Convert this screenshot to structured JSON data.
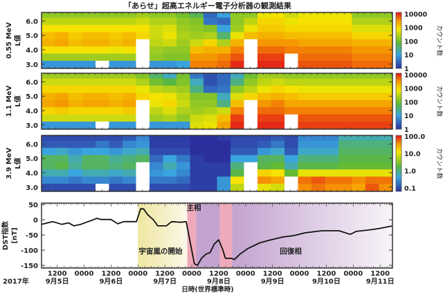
{
  "title": "「あらせ」超高エネルギー電子分析器の観測結果",
  "xaxis": {
    "label": "日時(世界標準時)",
    "year_label": "2017年",
    "range": [
      "09-05 05:00",
      "09-11 17:30"
    ],
    "time_ticks": [
      {
        "t": "09-05 12:00",
        "label": "1200"
      },
      {
        "t": "09-06 00:00",
        "label": "0000"
      },
      {
        "t": "09-06 12:00",
        "label": "1200"
      },
      {
        "t": "09-07 00:00",
        "label": "0000"
      },
      {
        "t": "09-07 12:00",
        "label": "1200"
      },
      {
        "t": "09-08 00:00",
        "label": "0000"
      },
      {
        "t": "09-08 12:00",
        "label": "1200"
      },
      {
        "t": "09-09 00:00",
        "label": "0000"
      },
      {
        "t": "09-09 12:00",
        "label": "1200"
      },
      {
        "t": "09-10 00:00",
        "label": "0000"
      },
      {
        "t": "09-10 12:00",
        "label": "1200"
      },
      {
        "t": "09-11 00:00",
        "label": "0000"
      },
      {
        "t": "09-11 12:00",
        "label": "1200"
      }
    ],
    "date_labels": [
      {
        "t": "09-05 12:00",
        "label": "9月5日"
      },
      {
        "t": "09-06 12:00",
        "label": "9月6日"
      },
      {
        "t": "09-07 12:00",
        "label": "9月7日"
      },
      {
        "t": "09-08 12:00",
        "label": "9月8日"
      },
      {
        "t": "09-09 12:00",
        "label": "9月9日"
      },
      {
        "t": "09-10 12:00",
        "label": "9月10日"
      },
      {
        "t": "09-11 12:00",
        "label": "9月11日"
      }
    ]
  },
  "chart_data": [
    {
      "type": "heatmap",
      "energy_label": "0.55 MeV",
      "ylabel": "L値",
      "ylim": [
        2.7,
        6.6
      ],
      "yticks": [
        "3.0",
        "4.0",
        "5.0",
        "6.0"
      ],
      "L_bins": [
        3.0,
        3.5,
        4.0,
        4.5,
        5.0,
        5.5,
        6.0,
        6.5
      ],
      "colorbar_label": "カウント数",
      "colorbar_range_log10": [
        0,
        4.1
      ],
      "colorbar_ticks": [
        {
          "v": 4,
          "label": "10000"
        },
        {
          "v": 3,
          "label": "1000"
        },
        {
          "v": 2,
          "label": "100"
        },
        {
          "v": 1,
          "label": "10"
        },
        {
          "v": 0,
          "label": "1"
        }
      ],
      "log10_counts_columns": [
        [
          0.9,
          2.3,
          2.9,
          3.3,
          3.2,
          2.9,
          2.5,
          2.2
        ],
        [
          0.9,
          2.3,
          2.9,
          3.4,
          3.3,
          2.9,
          2.5,
          2.2
        ],
        [
          0.9,
          2.3,
          2.9,
          3.2,
          3.1,
          2.9,
          2.5,
          2.2
        ],
        [
          0.9,
          2.3,
          2.9,
          3.3,
          3.2,
          2.9,
          2.5,
          2.2
        ],
        [
          null,
          2.3,
          2.9,
          3.3,
          3.2,
          2.9,
          2.5,
          2.2
        ],
        [
          0.9,
          2.3,
          2.8,
          3.2,
          3.1,
          2.9,
          2.5,
          2.2
        ],
        [
          0.9,
          2.3,
          2.9,
          3.3,
          3.2,
          2.9,
          2.5,
          2.2
        ],
        [
          null,
          null,
          null,
          null,
          3.0,
          2.9,
          2.6,
          2.3
        ],
        [
          0.9,
          2.2,
          2.3,
          2.5,
          2.6,
          2.6,
          2.4,
          2.2
        ],
        [
          0.9,
          2.1,
          2.2,
          2.6,
          2.8,
          2.7,
          2.4,
          2.2
        ],
        [
          1.0,
          2.1,
          2.2,
          2.3,
          2.4,
          2.3,
          2.2,
          2.0
        ],
        [
          3.6,
          3.5,
          3.2,
          2.6,
          2.3,
          2.2,
          2.1,
          1.7
        ],
        [
          3.6,
          3.5,
          3.3,
          3.0,
          2.4,
          2.1,
          0.6,
          0.5
        ],
        [
          3.7,
          3.6,
          3.3,
          2.4,
          1.6,
          1.0,
          0.5,
          1.0
        ],
        [
          4.0,
          3.8,
          3.6,
          3.3,
          2.8,
          2.3,
          2.2,
          2.2
        ],
        [
          null,
          null,
          null,
          null,
          3.2,
          2.8,
          2.5,
          2.2
        ],
        [
          4.0,
          3.9,
          3.7,
          3.5,
          3.3,
          3.1,
          3.0,
          2.8
        ],
        [
          4.0,
          3.9,
          3.7,
          3.5,
          3.3,
          3.1,
          3.0,
          2.9
        ],
        [
          null,
          null,
          3.6,
          3.5,
          3.2,
          3.0,
          2.8,
          2.6
        ],
        [
          3.8,
          3.7,
          3.6,
          3.4,
          3.2,
          3.0,
          2.9,
          2.8
        ],
        [
          3.8,
          3.7,
          3.6,
          3.4,
          3.2,
          3.0,
          2.9,
          2.8
        ],
        [
          3.8,
          3.7,
          3.6,
          3.4,
          3.2,
          3.0,
          2.9,
          2.8
        ],
        [
          3.8,
          3.7,
          3.6,
          3.4,
          3.2,
          3.0,
          2.9,
          2.8
        ],
        [
          3.7,
          3.6,
          3.5,
          3.3,
          3.0,
          2.7,
          2.4,
          2.2
        ],
        [
          3.7,
          3.6,
          3.5,
          3.3,
          3.0,
          2.7,
          2.4,
          2.2
        ],
        [
          3.7,
          3.6,
          3.5,
          3.3,
          3.0,
          2.7,
          2.4,
          2.2
        ]
      ]
    },
    {
      "type": "heatmap",
      "energy_label": "1.1 MeV",
      "ylabel": "L値",
      "ylim": [
        2.7,
        6.6
      ],
      "yticks": [
        "3.0",
        "4.0",
        "5.0",
        "6.0"
      ],
      "L_bins": [
        3.0,
        3.5,
        4.0,
        4.5,
        5.0,
        5.5,
        6.0,
        6.5
      ],
      "colorbar_label": "カウント数",
      "colorbar_range_log10": [
        0,
        4.1
      ],
      "colorbar_ticks": [
        {
          "v": 4,
          "label": "10000"
        },
        {
          "v": 3,
          "label": "1000"
        },
        {
          "v": 2,
          "label": "100"
        },
        {
          "v": 1,
          "label": "10"
        },
        {
          "v": 0,
          "label": "1"
        }
      ],
      "log10_counts_columns": [
        [
          0.9,
          2.6,
          3.0,
          3.4,
          3.3,
          3.0,
          2.6,
          2.3
        ],
        [
          0.9,
          2.6,
          3.1,
          3.5,
          3.4,
          3.0,
          2.6,
          2.3
        ],
        [
          0.9,
          2.6,
          3.0,
          3.3,
          3.2,
          3.0,
          2.6,
          2.3
        ],
        [
          0.9,
          2.6,
          3.0,
          3.4,
          3.3,
          3.0,
          2.6,
          2.3
        ],
        [
          null,
          2.6,
          3.0,
          3.4,
          3.3,
          3.0,
          2.6,
          2.3
        ],
        [
          0.9,
          2.6,
          3.0,
          3.3,
          3.2,
          3.0,
          2.6,
          2.3
        ],
        [
          0.9,
          2.6,
          3.1,
          3.4,
          3.3,
          3.0,
          2.6,
          2.3
        ],
        [
          null,
          null,
          null,
          null,
          3.0,
          2.8,
          2.4,
          2.1
        ],
        [
          0.9,
          2.3,
          2.5,
          2.8,
          2.9,
          2.5,
          2.0,
          1.6
        ],
        [
          0.9,
          2.4,
          2.7,
          3.0,
          2.8,
          2.4,
          1.8,
          1.2
        ],
        [
          0.9,
          2.2,
          2.4,
          2.6,
          2.5,
          2.3,
          2.1,
          2.0
        ],
        [
          2.7,
          2.6,
          2.3,
          2.2,
          2.1,
          1.5,
          1.2,
          0.6
        ],
        [
          2.8,
          2.7,
          2.4,
          2.2,
          2.1,
          0.5,
          0.3,
          0.3
        ],
        [
          3.4,
          3.2,
          2.6,
          1.5,
          1.2,
          0.6,
          0.5,
          0.5
        ],
        [
          4.0,
          3.9,
          3.6,
          3.2,
          2.7,
          2.2,
          1.5,
          1.2
        ],
        [
          null,
          null,
          null,
          null,
          3.0,
          2.5,
          2.2,
          2.0
        ],
        [
          4.0,
          3.9,
          3.7,
          3.5,
          3.2,
          2.8,
          2.5,
          2.3
        ],
        [
          4.0,
          3.9,
          3.7,
          3.6,
          3.3,
          3.0,
          2.6,
          2.3
        ],
        [
          null,
          null,
          3.6,
          3.4,
          3.2,
          2.9,
          2.5,
          2.2
        ],
        [
          3.9,
          3.8,
          3.6,
          3.4,
          3.1,
          2.8,
          2.5,
          2.2
        ],
        [
          3.9,
          3.8,
          3.6,
          3.4,
          3.1,
          2.8,
          2.5,
          2.2
        ],
        [
          3.9,
          3.8,
          3.6,
          3.4,
          3.1,
          2.8,
          2.5,
          2.2
        ],
        [
          3.9,
          3.8,
          3.6,
          3.4,
          3.1,
          2.8,
          2.5,
          2.2
        ],
        [
          3.9,
          3.8,
          3.6,
          3.4,
          3.1,
          2.8,
          2.5,
          2.2
        ],
        [
          3.9,
          3.8,
          3.6,
          3.4,
          3.1,
          2.8,
          2.5,
          2.2
        ],
        [
          3.9,
          3.8,
          3.6,
          3.4,
          3.1,
          2.8,
          2.5,
          2.2
        ]
      ]
    },
    {
      "type": "heatmap",
      "energy_label": "3.9 MeV",
      "ylabel": "L値",
      "ylim": [
        2.7,
        6.6
      ],
      "yticks": [
        "3.0",
        "4.0",
        "5.0",
        "6.0"
      ],
      "L_bins": [
        3.0,
        3.5,
        4.0,
        4.5,
        5.0,
        5.5,
        6.0,
        6.5
      ],
      "colorbar_label": "カウント数",
      "colorbar_range_log10": [
        -1.2,
        2.05
      ],
      "colorbar_ticks": [
        {
          "v": 2,
          "label": "100.0"
        },
        {
          "v": 1,
          "label": "10.0"
        },
        {
          "v": 0,
          "label": "1.0"
        },
        {
          "v": -1,
          "label": "0.1"
        }
      ],
      "log10_counts_columns": [
        [
          -1.0,
          -0.6,
          -0.2,
          0.1,
          0.1,
          -0.4,
          -0.9,
          -1.0
        ],
        [
          -1.0,
          -0.6,
          -0.2,
          0.2,
          0.1,
          -0.3,
          -0.9,
          -1.0
        ],
        [
          -1.0,
          -0.7,
          -0.4,
          -0.1,
          -0.2,
          -0.5,
          -0.9,
          -1.0
        ],
        [
          -1.0,
          -0.6,
          -0.2,
          0.1,
          0.1,
          -0.4,
          -0.9,
          -1.0
        ],
        [
          null,
          -0.6,
          -0.2,
          0.1,
          0.1,
          -0.4,
          -0.7,
          -1.0
        ],
        [
          -1.0,
          -0.7,
          -0.3,
          0.0,
          -0.1,
          -0.5,
          -0.9,
          -1.0
        ],
        [
          -1.0,
          -0.6,
          -0.2,
          0.1,
          0.0,
          -0.3,
          -0.6,
          -0.9
        ],
        [
          null,
          null,
          null,
          null,
          0.1,
          -0.2,
          -0.5,
          -0.6
        ],
        [
          -1.0,
          -0.7,
          -0.5,
          -0.6,
          -0.8,
          -1.0,
          -1.1,
          -1.1
        ],
        [
          -1.0,
          -0.7,
          -0.4,
          -0.2,
          -0.4,
          -1.0,
          -1.1,
          -1.1
        ],
        [
          -1.0,
          -0.8,
          -0.6,
          -0.5,
          -0.7,
          -1.0,
          -1.1,
          -1.1
        ],
        [
          -1.1,
          -1.1,
          -1.1,
          -1.1,
          -1.1,
          -1.2,
          -1.2,
          -1.2
        ],
        [
          -1.1,
          -1.1,
          -1.1,
          -1.1,
          -1.2,
          -1.2,
          -1.2,
          -1.2
        ],
        [
          -0.5,
          -0.5,
          -1.1,
          -1.1,
          -1.2,
          -1.2,
          -1.2,
          -1.1
        ],
        [
          0.8,
          1.1,
          0.2,
          0.0,
          -0.4,
          -0.9,
          -1.0,
          -1.0
        ],
        [
          null,
          null,
          null,
          null,
          -0.4,
          -0.9,
          -1.0,
          -1.0
        ],
        [
          1.0,
          1.6,
          1.2,
          0.2,
          0.1,
          -0.5,
          -0.9,
          -1.0
        ],
        [
          0.9,
          1.5,
          1.1,
          0.3,
          0.1,
          -0.3,
          -0.7,
          -0.9
        ],
        [
          null,
          null,
          0.3,
          -0.2,
          -0.4,
          -0.9,
          -1.0,
          -1.0
        ],
        [
          1.6,
          1.7,
          1.0,
          0.2,
          0.0,
          -0.3,
          -0.5,
          -0.6
        ],
        [
          1.7,
          1.8,
          1.0,
          0.2,
          0.0,
          -0.3,
          -0.5,
          -0.6
        ],
        [
          1.6,
          1.7,
          1.0,
          0.2,
          0.0,
          -0.3,
          -0.5,
          -0.6
        ],
        [
          1.6,
          1.7,
          1.0,
          0.3,
          0.2,
          0.1,
          0.0,
          -0.2
        ],
        [
          1.5,
          1.6,
          1.0,
          0.3,
          0.2,
          0.1,
          0.0,
          -0.2
        ],
        [
          1.8,
          1.7,
          1.0,
          0.3,
          0.2,
          0.1,
          0.0,
          -0.2
        ],
        [
          1.6,
          1.7,
          1.0,
          0.3,
          0.2,
          0.1,
          0.0,
          -0.2
        ]
      ]
    },
    {
      "type": "line",
      "ylabel": "DST指数",
      "yunit": "[nT]",
      "ylim": [
        -159,
        55
      ],
      "yticks": [
        {
          "v": 50,
          "label": "50"
        },
        {
          "v": 0,
          "label": "0"
        },
        {
          "v": -50,
          "label": "-50"
        },
        {
          "v": -100,
          "label": "-100"
        },
        {
          "v": -150,
          "label": "-150"
        }
      ],
      "phases": [
        {
          "label": "宇宙嵐の開始",
          "start": "09-07 00:00",
          "end": "09-07 22:00",
          "color": "#f3eeb0"
        },
        {
          "label": "主相",
          "start": "09-07 22:00",
          "end": "09-08 02:00",
          "color": "#eeaabb"
        },
        {
          "label": "",
          "start": "09-08 02:00",
          "end": "09-08 12:30",
          "color": "#c3a3cf"
        },
        {
          "label": "",
          "start": "09-08 12:30",
          "end": "09-08 18:00",
          "color": "#eeaabb"
        },
        {
          "label": "回復相",
          "start": "09-08 18:00",
          "end": "09-11 17:30",
          "color": "#c3a3cf"
        }
      ],
      "points": [
        [
          "09-05 05:00",
          -15
        ],
        [
          "09-05 10:00",
          -6
        ],
        [
          "09-05 14:00",
          -15
        ],
        [
          "09-05 17:00",
          -10
        ],
        [
          "09-05 19:30",
          -20
        ],
        [
          "09-05 22:30",
          -15
        ],
        [
          "09-06 03:40",
          -1
        ],
        [
          "09-06 05:40",
          5
        ],
        [
          "09-06 07:30",
          1
        ],
        [
          "09-06 12:00",
          1
        ],
        [
          "09-06 15:00",
          -13
        ],
        [
          "09-06 17:40",
          -6
        ],
        [
          "09-06 23:20",
          -6
        ],
        [
          "09-07 01:10",
          36
        ],
        [
          "09-07 02:30",
          36
        ],
        [
          "09-07 04:20",
          17
        ],
        [
          "09-07 07:00",
          -1
        ],
        [
          "09-07 08:50",
          -20
        ],
        [
          "09-07 12:40",
          -20
        ],
        [
          "09-07 15:00",
          -6
        ],
        [
          "09-07 19:00",
          -8
        ],
        [
          "09-07 21:30",
          -6
        ],
        [
          "09-08 01:10",
          -145
        ],
        [
          "09-08 02:30",
          -150
        ],
        [
          "09-08 04:20",
          -127
        ],
        [
          "09-08 06:20",
          -113
        ],
        [
          "09-08 08:10",
          -108
        ],
        [
          "09-08 10:00",
          -80
        ],
        [
          "09-08 12:00",
          -66
        ],
        [
          "09-08 13:50",
          -99
        ],
        [
          "09-08 15:00",
          -127
        ],
        [
          "09-08 17:40",
          -127
        ],
        [
          "09-08 19:00",
          -131
        ],
        [
          "09-08 21:30",
          -113
        ],
        [
          "09-09 01:10",
          -94
        ],
        [
          "09-09 06:20",
          -76
        ],
        [
          "09-09 11:20",
          -66
        ],
        [
          "09-09 16:20",
          -57
        ],
        [
          "09-09 21:30",
          -52
        ],
        [
          "09-10 02:30",
          -43
        ],
        [
          "09-10 10:00",
          -36
        ],
        [
          "09-10 17:40",
          -36
        ],
        [
          "09-10 22:40",
          -48
        ],
        [
          "09-11 01:20",
          -38
        ],
        [
          "09-11 06:20",
          -34
        ],
        [
          "09-11 11:20",
          -29
        ],
        [
          "09-11 17:40",
          -20
        ]
      ]
    }
  ]
}
